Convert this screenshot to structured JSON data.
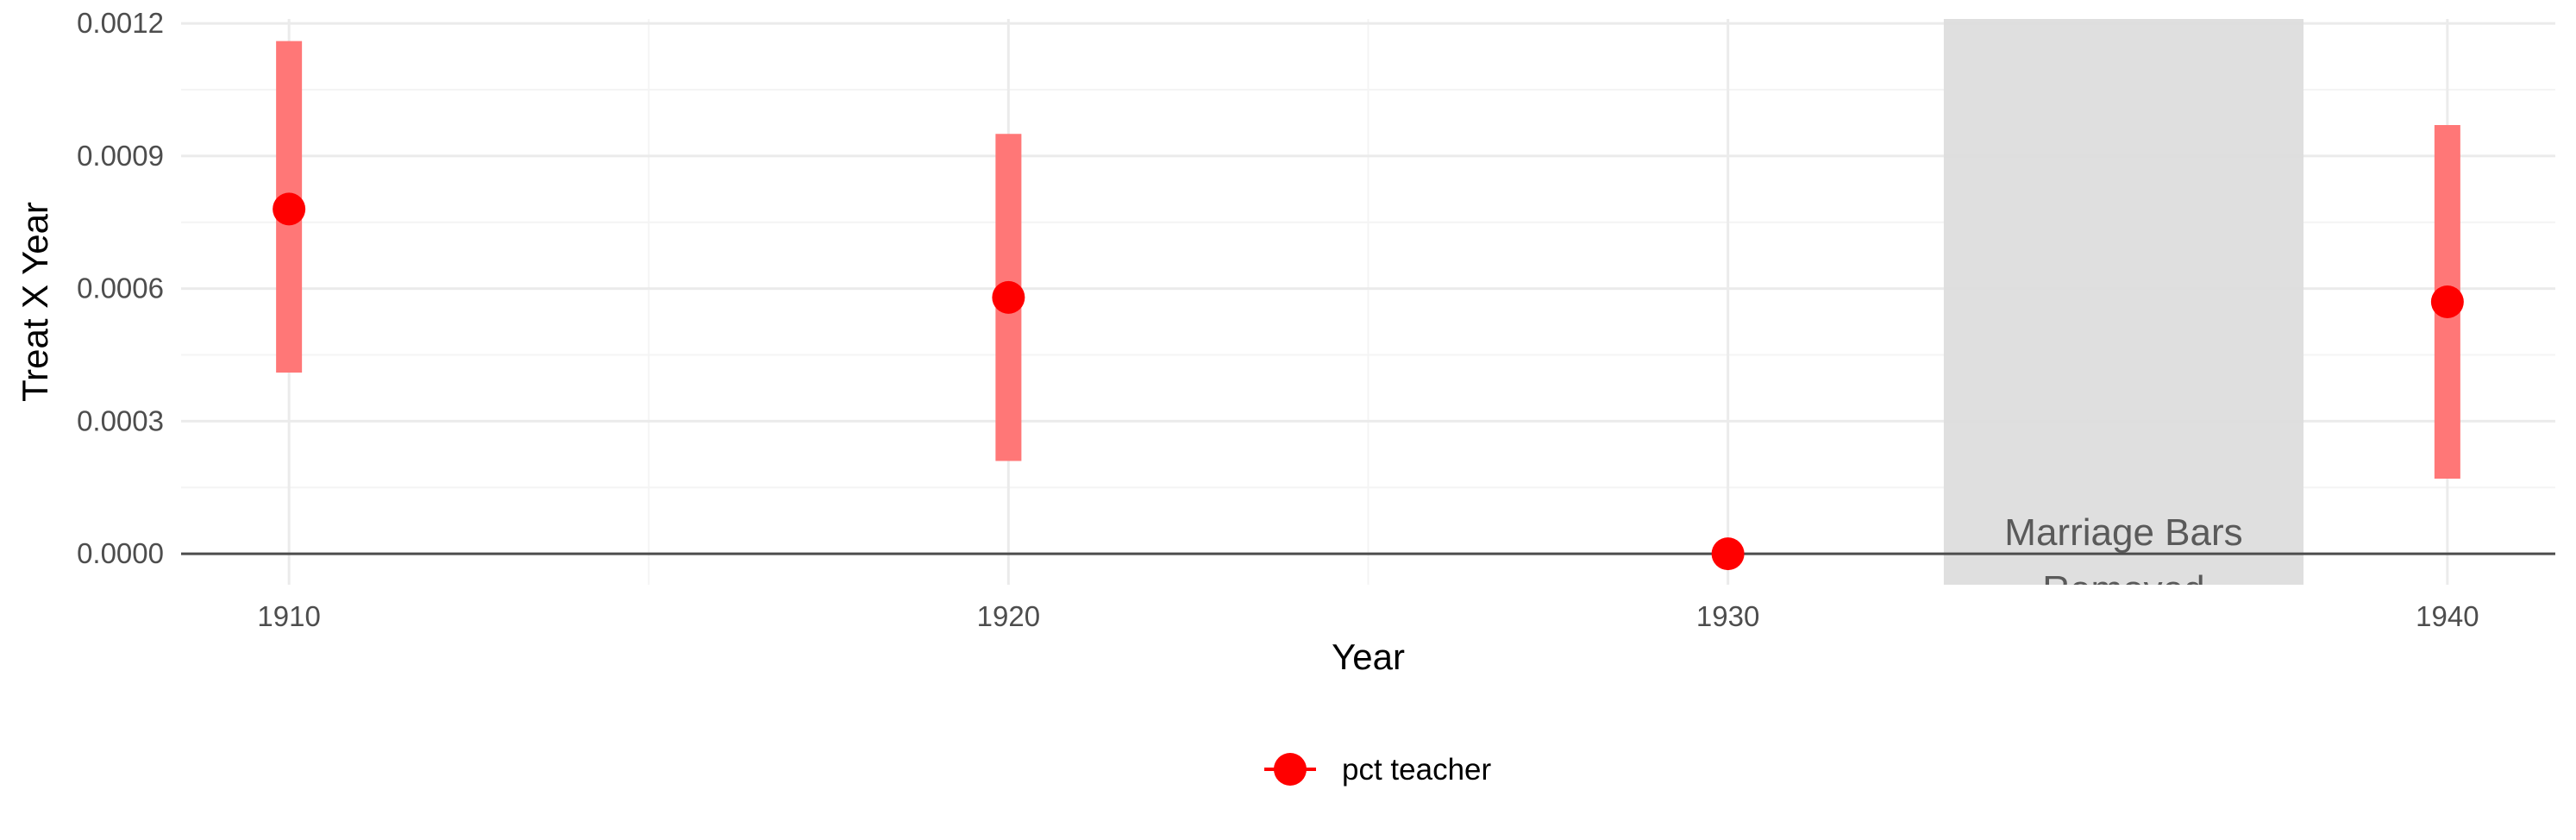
{
  "chart_data": {
    "type": "scatter",
    "title": "",
    "xlabel": "Year",
    "ylabel": "Treat X Year",
    "xlim": [
      1908.5,
      1941.5
    ],
    "ylim": [
      -7e-05,
      0.00121
    ],
    "x_ticks": [
      1910,
      1920,
      1930,
      1940
    ],
    "x_tick_labels": [
      "1910",
      "1920",
      "1930",
      "1940"
    ],
    "x_minor_ticks": [
      1915,
      1925,
      1935
    ],
    "y_ticks": [
      0,
      0.0003,
      0.0006,
      0.0009,
      0.0012
    ],
    "y_tick_labels": [
      "0.0000",
      "0.0003",
      "0.0006",
      "0.0009",
      "0.0012"
    ],
    "y_minor_ticks": [
      0.00015,
      0.00045,
      0.00075,
      0.00105
    ],
    "grid": true,
    "reference_line_y": 0,
    "series": [
      {
        "name": "pct teacher",
        "color": "#ff0000",
        "points": [
          {
            "x": 1910,
            "y": 0.00078,
            "lower": 0.00041,
            "upper": 0.00116
          },
          {
            "x": 1920,
            "y": 0.00058,
            "lower": 0.00021,
            "upper": 0.00095
          },
          {
            "x": 1930,
            "y": 0.0,
            "lower": 0.0,
            "upper": 0.0
          },
          {
            "x": 1940,
            "y": 0.00057,
            "lower": 0.00017,
            "upper": 0.00097
          }
        ]
      }
    ],
    "shaded_region": {
      "x_start": 1933,
      "x_end": 1938,
      "label_lines": [
        "Marriage Bars",
        "Removed"
      ],
      "color": "#dcdcdc"
    },
    "legend": {
      "position": "bottom",
      "items": [
        {
          "label": "pct teacher",
          "color": "#ff0000"
        }
      ]
    },
    "colors": {
      "point": "#ff0000",
      "errorbar": "#ff7777",
      "shade": "#dcdcdc",
      "zero_line": "#4d4d4d"
    }
  }
}
